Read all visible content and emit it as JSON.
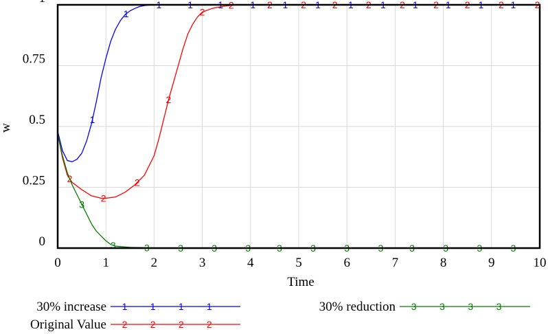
{
  "chart_data": {
    "type": "line",
    "title": "",
    "xlabel": "Time",
    "ylabel": "w",
    "xlim": [
      0,
      10
    ],
    "ylim": [
      0,
      1
    ],
    "x_ticks": [
      "0",
      "1",
      "2",
      "3",
      "4",
      "5",
      "6",
      "7",
      "8",
      "9",
      "10"
    ],
    "y_ticks": [
      {
        "value": 0,
        "label": "0"
      },
      {
        "value": 0.25,
        "label": "0.25"
      },
      {
        "value": 0.5,
        "label": "0.5"
      },
      {
        "value": 0.75,
        "label": "0.75"
      },
      {
        "value": 1,
        "label": "1"
      }
    ],
    "grid": true,
    "legend_position": "bottom",
    "series": [
      {
        "name": "30% increase",
        "marker": "1",
        "color": "#0000ff",
        "x": [
          0,
          0.1,
          0.2,
          0.3,
          0.4,
          0.5,
          0.6,
          0.7,
          0.8,
          0.9,
          1.0,
          1.1,
          1.2,
          1.3,
          1.4,
          1.5,
          1.6,
          1.7,
          1.8,
          1.9,
          2.0,
          2.2,
          2.5,
          3.0,
          4.0,
          6.0,
          8.0,
          10.0
        ],
        "y": [
          0.48,
          0.4,
          0.36,
          0.355,
          0.365,
          0.39,
          0.44,
          0.51,
          0.6,
          0.7,
          0.78,
          0.85,
          0.9,
          0.935,
          0.96,
          0.975,
          0.985,
          0.993,
          0.997,
          0.999,
          1.0,
          1.0,
          1.0,
          1.0,
          1.0,
          1.0,
          1.0,
          1.0
        ]
      },
      {
        "name": "Original Value",
        "marker": "2",
        "color": "#ff0000",
        "x": [
          0,
          0.1,
          0.2,
          0.3,
          0.5,
          0.7,
          0.9,
          1.0,
          1.2,
          1.4,
          1.6,
          1.8,
          2.0,
          2.1,
          2.2,
          2.3,
          2.4,
          2.5,
          2.6,
          2.7,
          2.8,
          2.9,
          3.0,
          3.2,
          3.4,
          3.6,
          3.8,
          4.0,
          6.0,
          8.0,
          10.0
        ],
        "y": [
          0.47,
          0.37,
          0.3,
          0.27,
          0.24,
          0.215,
          0.205,
          0.205,
          0.21,
          0.23,
          0.26,
          0.3,
          0.38,
          0.45,
          0.53,
          0.61,
          0.68,
          0.75,
          0.82,
          0.88,
          0.92,
          0.95,
          0.97,
          0.985,
          0.993,
          0.998,
          1.0,
          1.0,
          1.0,
          1.0,
          1.0
        ]
      },
      {
        "name": "30% reduction",
        "marker": "3",
        "color": "#008000",
        "x": [
          0,
          0.1,
          0.2,
          0.3,
          0.4,
          0.5,
          0.6,
          0.7,
          0.8,
          0.9,
          1.0,
          1.1,
          1.2,
          1.5,
          2.0,
          3.0,
          5.0,
          10.0
        ],
        "y": [
          0.47,
          0.38,
          0.31,
          0.26,
          0.22,
          0.18,
          0.14,
          0.1,
          0.07,
          0.05,
          0.03,
          0.015,
          0.008,
          0.003,
          0.001,
          0.0,
          0.0,
          0.0
        ]
      }
    ]
  }
}
